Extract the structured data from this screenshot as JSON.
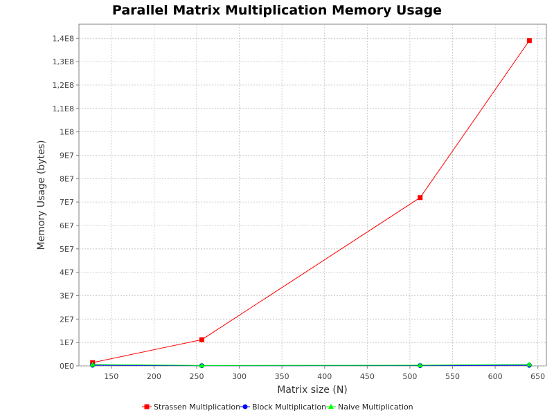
{
  "chart_data": {
    "type": "line",
    "title": "Parallel Matrix Multiplication Memory Usage",
    "xlabel": "Matrix size (N)",
    "ylabel": "Memory Usage (bytes)",
    "xlim": [
      112,
      660
    ],
    "ylim": [
      0,
      146000000
    ],
    "x_ticks": [
      150,
      200,
      250,
      300,
      350,
      400,
      450,
      500,
      550,
      600,
      650
    ],
    "x_tick_labels": [
      "150",
      "200",
      "250",
      "300",
      "350",
      "400",
      "450",
      "500",
      "550",
      "600",
      "650"
    ],
    "y_ticks": [
      0,
      10000000,
      20000000,
      30000000,
      40000000,
      50000000,
      60000000,
      70000000,
      80000000,
      90000000,
      100000000,
      110000000,
      120000000,
      130000000,
      140000000
    ],
    "y_tick_labels": [
      "0E0",
      "1E7",
      "2E7",
      "3E7",
      "4E7",
      "5E7",
      "6E7",
      "7E7",
      "8E7",
      "9E7",
      "1E8",
      "1,1E8",
      "1,2E8",
      "1,3E8",
      "1,4E8"
    ],
    "grid": true,
    "legend_position": "bottom",
    "series": [
      {
        "name": "Strassen Multiplication",
        "color": "#ff0000",
        "marker": "square",
        "x": [
          128,
          256,
          512,
          640
        ],
        "y": [
          1400000,
          11200000,
          71900000,
          139000000
        ]
      },
      {
        "name": "Block Multiplication",
        "color": "#0000ff",
        "marker": "circle",
        "x": [
          128,
          256,
          512,
          640
        ],
        "y": [
          300000,
          100000,
          150000,
          250000
        ]
      },
      {
        "name": "Naive Multiplication",
        "color": "#00ff00",
        "marker": "triangle",
        "x": [
          128,
          256,
          512,
          640
        ],
        "y": [
          600000,
          200000,
          300000,
          650000
        ]
      }
    ]
  }
}
